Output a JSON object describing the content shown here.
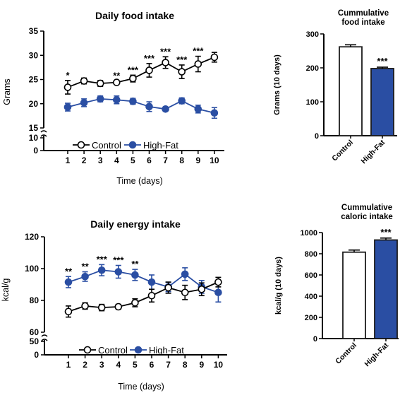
{
  "colors": {
    "control": "#ffffff",
    "highfat": "#2a4ea3",
    "axis": "#000000",
    "bar_edge": "#1c1c1c"
  },
  "chart_data": [
    {
      "id": "food-daily",
      "type": "line",
      "title": "Daily food intake",
      "xlabel": "Time (days)",
      "ylabel": "Grams",
      "x": [
        1,
        2,
        3,
        4,
        5,
        6,
        7,
        8,
        9,
        10
      ],
      "ylim": [
        15,
        35
      ],
      "yticks": [
        "15",
        "20",
        "25",
        "30",
        "35"
      ],
      "break_ticks": [
        "0",
        "10"
      ],
      "series": [
        {
          "name": "Control",
          "values": [
            23.4,
            24.7,
            24.2,
            24.4,
            25.2,
            26.9,
            28.5,
            26.6,
            28.2,
            29.6
          ],
          "errors": [
            1.4,
            0.6,
            0.6,
            0.3,
            0.7,
            1.4,
            1.2,
            1.4,
            1.6,
            1.0
          ]
        },
        {
          "name": "High-Fat",
          "values": [
            19.3,
            20.2,
            21.0,
            20.8,
            20.5,
            19.4,
            18.9,
            20.6,
            18.9,
            18.1
          ],
          "errors": [
            0.8,
            0.8,
            0.6,
            0.8,
            0.6,
            1.0,
            0.2,
            0.6,
            0.8,
            1.1
          ]
        }
      ],
      "annotations": [
        {
          "x": 1,
          "text": "*"
        },
        {
          "x": 4,
          "text": "**"
        },
        {
          "x": 5,
          "text": "***"
        },
        {
          "x": 6,
          "text": "***"
        },
        {
          "x": 7,
          "text": "***"
        },
        {
          "x": 8,
          "text": "***"
        },
        {
          "x": 9,
          "text": "***"
        }
      ]
    },
    {
      "id": "food-cumulative",
      "type": "bar",
      "title_lines": [
        "Cummulative",
        "food intake"
      ],
      "ylabel": "Grams (10 days)",
      "ylim": [
        0,
        300
      ],
      "yticks": [
        "0",
        "100",
        "200",
        "300"
      ],
      "categories": [
        "Control",
        "High-Fat"
      ],
      "values": [
        262,
        198
      ],
      "errors": [
        6,
        4
      ],
      "annotations": [
        {
          "category": "High-Fat",
          "text": "***"
        }
      ]
    },
    {
      "id": "energy-daily",
      "type": "line",
      "title": "Daily energy intake",
      "xlabel": "Time (days)",
      "ylabel": "kcal/g",
      "x": [
        1,
        2,
        3,
        4,
        5,
        6,
        7,
        8,
        9,
        10
      ],
      "ylim": [
        60,
        120
      ],
      "yticks": [
        "60",
        "80",
        "100",
        "120"
      ],
      "break_ticks": [
        "0",
        "50"
      ],
      "series": [
        {
          "name": "Control",
          "values": [
            73,
            76.5,
            75.5,
            76,
            78.5,
            83,
            88,
            85,
            87,
            91.5
          ],
          "errors": [
            3.5,
            2,
            2,
            1.5,
            2.5,
            4,
            3.5,
            4.5,
            4,
            3
          ]
        },
        {
          "name": "High-Fat",
          "values": [
            91.5,
            95,
            99,
            98,
            96,
            91.5,
            88.5,
            96.5,
            88.5,
            85
          ],
          "errors": [
            3.5,
            3,
            3.5,
            4,
            3.5,
            4.5,
            3,
            4,
            4,
            6
          ]
        }
      ],
      "annotations": [
        {
          "x": 1,
          "text": "**"
        },
        {
          "x": 2,
          "text": "**"
        },
        {
          "x": 3,
          "text": "***"
        },
        {
          "x": 4,
          "text": "***"
        },
        {
          "x": 5,
          "text": "**"
        }
      ]
    },
    {
      "id": "energy-cumulative",
      "type": "bar",
      "title_lines": [
        "Cummulative",
        "caloric intake"
      ],
      "ylabel": "kcal/g (10 days)",
      "ylim": [
        0,
        1000
      ],
      "yticks": [
        "0",
        "200",
        "400",
        "600",
        "800",
        "1000"
      ],
      "categories": [
        "Control",
        "High-Fat"
      ],
      "values": [
        815,
        930
      ],
      "errors": [
        20,
        18
      ],
      "annotations": [
        {
          "category": "High-Fat",
          "text": "***"
        }
      ]
    }
  ]
}
